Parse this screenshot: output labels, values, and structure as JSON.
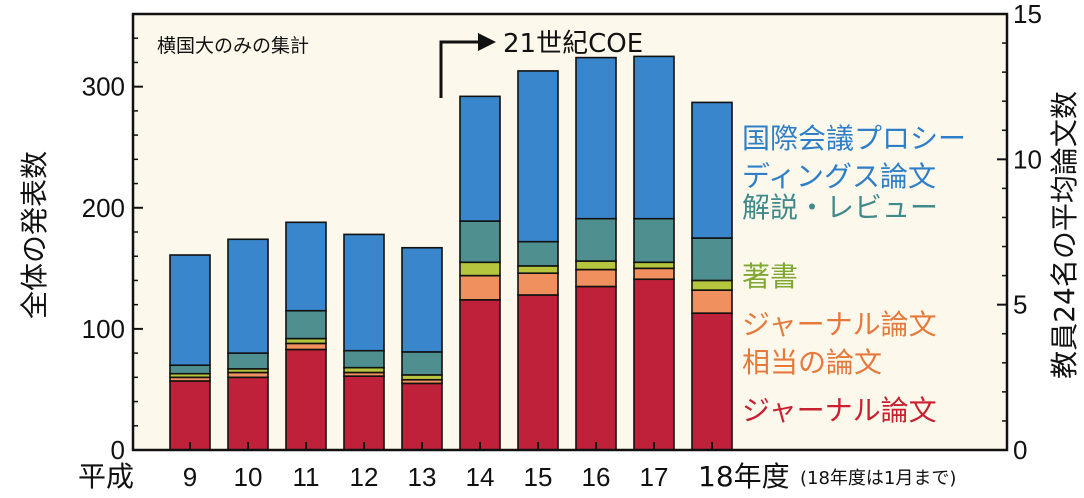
{
  "chart_data": {
    "type": "bar",
    "stacked": true,
    "x_prefix": "平成",
    "categories": [
      "9",
      "10",
      "11",
      "12",
      "13",
      "14",
      "15",
      "16",
      "17",
      "18年度"
    ],
    "x_note": "(18年度は1月まで)",
    "ylabel": "全体の発表数",
    "ylim": [
      0,
      360
    ],
    "yticks": [
      0,
      100,
      200,
      300
    ],
    "y2label": "教員24名の平均論文数",
    "y2lim": [
      0,
      15
    ],
    "y2ticks": [
      0,
      5,
      10,
      15
    ],
    "annotation_top_left": "横国大のみの集計",
    "annotation_coe": "21世紀COE",
    "grid": false,
    "legend_position": "right",
    "series": [
      {
        "name": "ジャーナル論文",
        "color": "#c0213a",
        "values": [
          57,
          60,
          83,
          61,
          55,
          124,
          128,
          135,
          141,
          113
        ]
      },
      {
        "name": "ジャーナル論文相当の論文",
        "color": "#f0905e",
        "values": [
          3,
          4,
          5,
          3,
          3,
          20,
          18,
          14,
          9,
          19
        ]
      },
      {
        "name": "著書",
        "color": "#b5c53d",
        "values": [
          3,
          3,
          4,
          4,
          4,
          11,
          6,
          7,
          5,
          8
        ]
      },
      {
        "name": "解説・レビュー",
        "color": "#4f8f8f",
        "values": [
          7,
          13,
          23,
          14,
          19,
          34,
          20,
          35,
          36,
          35
        ]
      },
      {
        "name": "国際会議プロシーディングス論文",
        "color": "#3a86cc",
        "values": [
          91,
          94,
          73,
          96,
          86,
          103,
          141,
          133,
          134,
          112
        ]
      }
    ],
    "legend": [
      {
        "lines": [
          "国際会議プロシー",
          "ディングス論文"
        ],
        "color": "#2f7fc8"
      },
      {
        "lines": [
          "解説・レビュー"
        ],
        "color": "#3f8a8a"
      },
      {
        "lines": [
          "著書"
        ],
        "color": "#7fa832"
      },
      {
        "lines": [
          "ジャーナル論文",
          "相当の論文"
        ],
        "color": "#e57a3c"
      },
      {
        "lines": [
          "ジャーナル論文"
        ],
        "color": "#c8202f"
      }
    ]
  }
}
